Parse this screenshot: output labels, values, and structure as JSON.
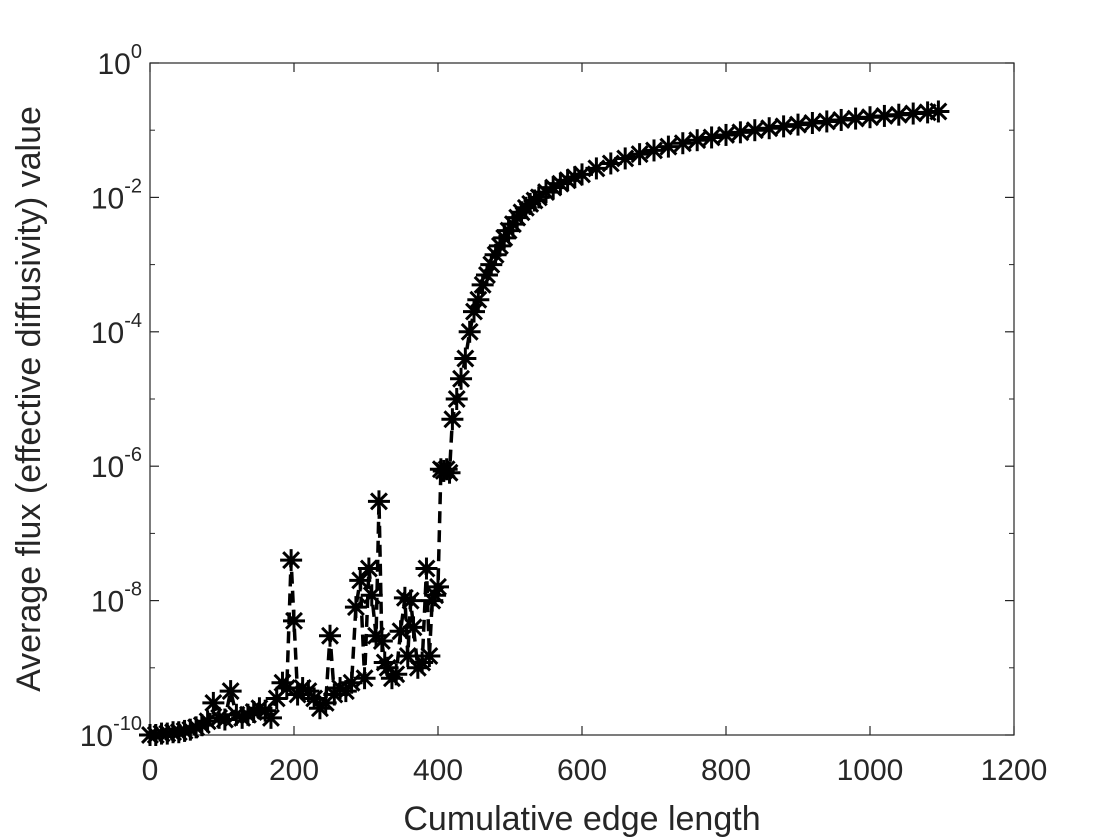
{
  "chart_data": {
    "type": "scatter",
    "title": "",
    "xlabel": "Cumulative edge length",
    "ylabel": "Average flux (effective diffusivity) value",
    "xlim": [
      0,
      1200
    ],
    "ylim": [
      1e-10,
      1
    ],
    "yscale": "log",
    "grid": false,
    "legend": "none",
    "marker": "asterisk",
    "line_style": "dashed",
    "color": "#000000",
    "x_ticks": [
      "0",
      "200",
      "400",
      "600",
      "800",
      "1000",
      "1200"
    ],
    "y_ticks": [
      {
        "base": "10",
        "exp": "-10"
      },
      {
        "base": "10",
        "exp": "-8"
      },
      {
        "base": "10",
        "exp": "-6"
      },
      {
        "base": "10",
        "exp": "-4"
      },
      {
        "base": "10",
        "exp": "-2"
      },
      {
        "base": "10",
        "exp": "0"
      }
    ],
    "series": [
      {
        "x": [
          0,
          8,
          16,
          24,
          32,
          40,
          48,
          56,
          64,
          72,
          80,
          88,
          96,
          104,
          112,
          120,
          128,
          136,
          144,
          152,
          160,
          168,
          176,
          184,
          190,
          196,
          200,
          205,
          212,
          220,
          228,
          236,
          244,
          250,
          256,
          264,
          272,
          280,
          286,
          292,
          298,
          304,
          308,
          314,
          318,
          322,
          326,
          330,
          336,
          342,
          348,
          354,
          358,
          362,
          366,
          372,
          378,
          384,
          388,
          392,
          396,
          400,
          404,
          408,
          412,
          416,
          420,
          426,
          432,
          438,
          444,
          450,
          456,
          462,
          468,
          474,
          480,
          486,
          492,
          498,
          504,
          510,
          516,
          522,
          528,
          534,
          540,
          550,
          560,
          570,
          580,
          590,
          600,
          620,
          640,
          660,
          680,
          700,
          720,
          740,
          760,
          780,
          800,
          820,
          840,
          860,
          880,
          900,
          920,
          940,
          960,
          980,
          1000,
          1020,
          1040,
          1060,
          1080,
          1095
        ],
        "y": [
          1e-10,
          1e-10,
          1.05e-10,
          1.05e-10,
          1.1e-10,
          1.1e-10,
          1.15e-10,
          1.2e-10,
          1.3e-10,
          1.4e-10,
          1.6e-10,
          3e-10,
          1.8e-10,
          1.7e-10,
          4.5e-10,
          2e-10,
          1.8e-10,
          2e-10,
          2.2e-10,
          2.5e-10,
          2.3e-10,
          1.8e-10,
          3.5e-10,
          6e-10,
          5e-10,
          4e-08,
          5e-09,
          4e-10,
          5e-10,
          4.5e-10,
          3.5e-10,
          2.5e-10,
          3e-10,
          3e-09,
          4e-10,
          5e-10,
          4.5e-10,
          6e-10,
          8e-09,
          2e-08,
          7e-10,
          3e-08,
          1.2e-08,
          3e-09,
          3e-07,
          2.5e-09,
          1.2e-09,
          1e-09,
          7e-10,
          8e-10,
          3.5e-09,
          1.1e-08,
          1.5e-09,
          1e-08,
          4e-09,
          1e-09,
          1.2e-09,
          3e-08,
          1.5e-09,
          1e-08,
          1.2e-08,
          1.6e-08,
          9e-07,
          8.5e-07,
          9e-07,
          8e-07,
          5e-06,
          1e-05,
          2e-05,
          4e-05,
          0.0001,
          0.0002,
          0.0003,
          0.0005,
          0.0007,
          0.001,
          0.0014,
          0.0019,
          0.0025,
          0.0032,
          0.004,
          0.005,
          0.006,
          0.007,
          0.008,
          0.009,
          0.01,
          0.012,
          0.014,
          0.016,
          0.018,
          0.02,
          0.022,
          0.027,
          0.032,
          0.038,
          0.044,
          0.05,
          0.057,
          0.064,
          0.071,
          0.078,
          0.085,
          0.093,
          0.1,
          0.107,
          0.114,
          0.121,
          0.128,
          0.135,
          0.142,
          0.149,
          0.156,
          0.163,
          0.17,
          0.177,
          0.184,
          0.19
        ]
      }
    ]
  }
}
